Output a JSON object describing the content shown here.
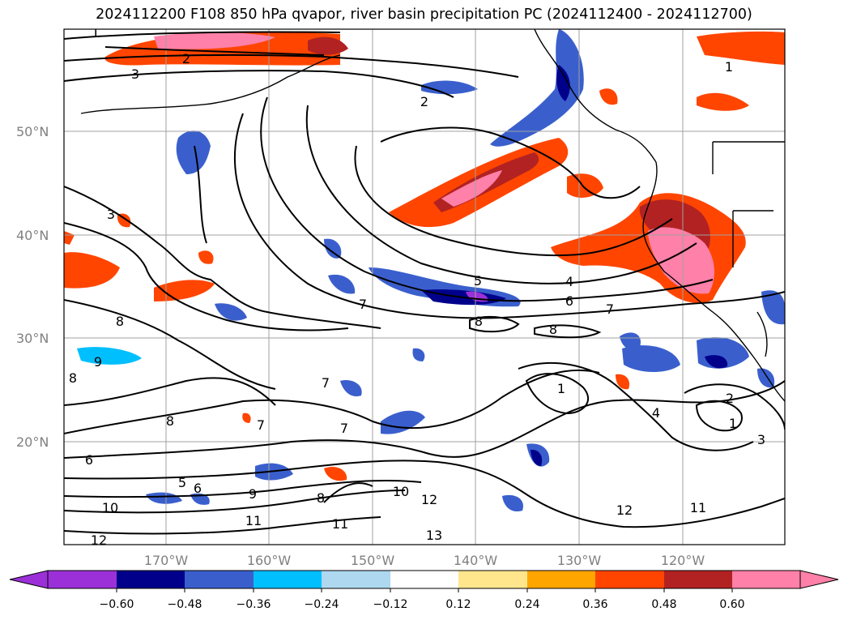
{
  "title": "2024112200 F108 850 hPa qvapor, river basin precipitation PC (2024112400 - 2024112700)",
  "lat_labels": [
    "50°N",
    "40°N",
    "30°N",
    "20°N"
  ],
  "lon_labels": [
    "170°W",
    "160°W",
    "150°W",
    "140°W",
    "130°W",
    "120°W"
  ],
  "colorbar": {
    "ticks": [
      "−0.60",
      "−0.48",
      "−0.36",
      "−0.24",
      "−0.12",
      "0.12",
      "0.24",
      "0.36",
      "0.48",
      "0.60"
    ],
    "colors": [
      "#9b30d8",
      "#00008b",
      "#3a5fcd",
      "#00bfff",
      "#add8f0",
      "#ffffff",
      "#ffe68c",
      "#ffa500",
      "#ff4500",
      "#b22222",
      "#ff80a8",
      "#ff80a8"
    ]
  },
  "contour_labels": [
    "1",
    "2",
    "3",
    "2",
    "1",
    "3",
    "4",
    "5",
    "6",
    "7",
    "7",
    "8",
    "8",
    "8",
    "9",
    "8",
    "7",
    "7",
    "7",
    "8",
    "6",
    "5",
    "6",
    "10",
    "9",
    "11",
    "8",
    "10",
    "12",
    "11",
    "12",
    "13",
    "12",
    "11",
    "4",
    "3",
    "1",
    "1",
    "2"
  ],
  "shading": {
    "positive": [
      "#ffe68c",
      "#ffa500",
      "#ff4500",
      "#b22222",
      "#ff80a8"
    ],
    "negative": [
      "#add8f0",
      "#00bfff",
      "#3a5fcd",
      "#00008b",
      "#9b30d8"
    ]
  }
}
